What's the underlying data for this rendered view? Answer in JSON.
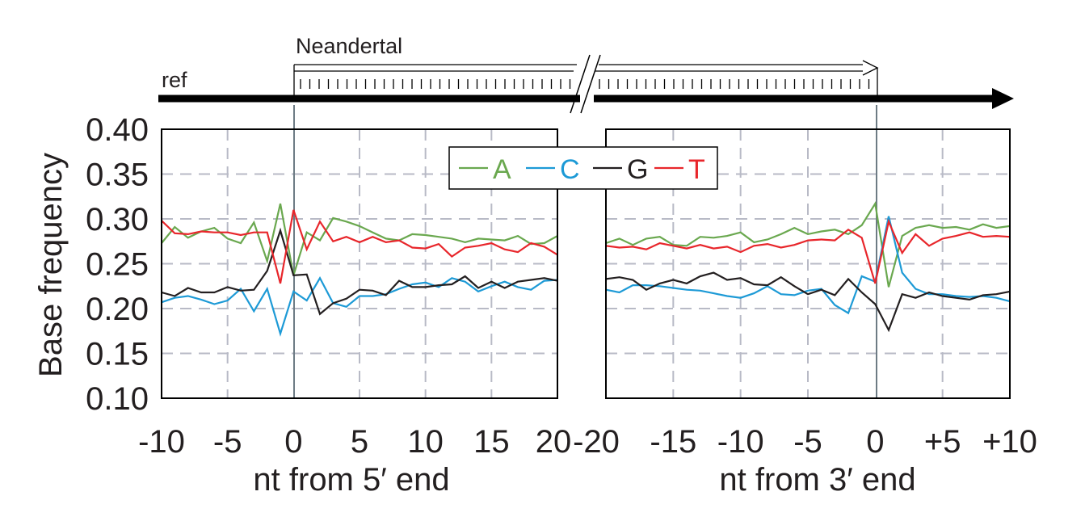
{
  "chart_data": [
    {
      "type": "line",
      "panel": "5prime",
      "xlabel": "nt from 5′ end",
      "ylabel": "Base frequency",
      "xlim": [
        -10,
        20
      ],
      "ylim": [
        0.1,
        0.4
      ],
      "xticks": [
        -10,
        -5,
        0,
        5,
        10,
        15,
        20
      ],
      "xtick_labels": [
        "-10",
        "-5",
        "0",
        "5",
        "10",
        "15",
        "20"
      ],
      "yticks": [
        0.1,
        0.15,
        0.2,
        0.25,
        0.3,
        0.35,
        0.4
      ],
      "ytick_labels": [
        "0.10",
        "0.15",
        "0.20",
        "0.25",
        "0.30",
        "0.35",
        "0.40"
      ],
      "grid": true,
      "x": [
        -10,
        -9,
        -8,
        -7,
        -6,
        -5,
        -4,
        -3,
        -2,
        -1,
        0,
        1,
        2,
        3,
        4,
        5,
        6,
        7,
        8,
        9,
        10,
        11,
        12,
        13,
        14,
        15,
        16,
        17,
        18,
        19,
        20
      ],
      "series": [
        {
          "name": "A",
          "color": "#6aa84f",
          "values": [
            0.273,
            0.291,
            0.279,
            0.286,
            0.29,
            0.278,
            0.273,
            0.296,
            0.253,
            0.317,
            0.237,
            0.285,
            0.276,
            0.301,
            0.297,
            0.292,
            0.285,
            0.278,
            0.276,
            0.283,
            0.282,
            0.28,
            0.278,
            0.274,
            0.278,
            0.277,
            0.276,
            0.281,
            0.272,
            0.273,
            0.281
          ]
        },
        {
          "name": "C",
          "color": "#1d9ad6",
          "values": [
            0.207,
            0.212,
            0.214,
            0.21,
            0.205,
            0.209,
            0.222,
            0.197,
            0.222,
            0.172,
            0.219,
            0.209,
            0.234,
            0.206,
            0.202,
            0.214,
            0.214,
            0.216,
            0.222,
            0.227,
            0.229,
            0.224,
            0.234,
            0.23,
            0.219,
            0.225,
            0.23,
            0.224,
            0.221,
            0.231,
            0.232
          ]
        },
        {
          "name": "G",
          "color": "#231f20",
          "values": [
            0.218,
            0.214,
            0.223,
            0.218,
            0.218,
            0.224,
            0.22,
            0.221,
            0.242,
            0.287,
            0.237,
            0.238,
            0.194,
            0.206,
            0.211,
            0.221,
            0.22,
            0.215,
            0.231,
            0.224,
            0.224,
            0.226,
            0.227,
            0.236,
            0.223,
            0.23,
            0.223,
            0.23,
            0.232,
            0.234,
            0.231
          ]
        },
        {
          "name": "T",
          "color": "#e8262b",
          "values": [
            0.298,
            0.284,
            0.283,
            0.286,
            0.285,
            0.285,
            0.282,
            0.285,
            0.285,
            0.228,
            0.31,
            0.266,
            0.297,
            0.275,
            0.28,
            0.274,
            0.28,
            0.274,
            0.276,
            0.268,
            0.267,
            0.272,
            0.258,
            0.268,
            0.27,
            0.273,
            0.266,
            0.263,
            0.273,
            0.269,
            0.26
          ]
        }
      ]
    },
    {
      "type": "line",
      "panel": "3prime",
      "xlabel": "nt from 3′ end",
      "xlim": [
        -20,
        10
      ],
      "ylim": [
        0.1,
        0.4
      ],
      "xticks": [
        -20,
        -15,
        -10,
        -5,
        0,
        5,
        10
      ],
      "xtick_labels": [
        "-20",
        "-15",
        "-10",
        "-5",
        "0",
        "+5",
        "+10"
      ],
      "grid": true,
      "x": [
        -20,
        -19,
        -18,
        -17,
        -16,
        -15,
        -14,
        -13,
        -12,
        -11,
        -10,
        -9,
        -8,
        -7,
        -6,
        -5,
        -4,
        -3,
        -2,
        -1,
        0,
        1,
        2,
        3,
        4,
        5,
        6,
        7,
        8,
        9,
        10
      ],
      "series": [
        {
          "name": "A",
          "color": "#6aa84f",
          "values": [
            0.273,
            0.278,
            0.271,
            0.278,
            0.28,
            0.271,
            0.27,
            0.28,
            0.279,
            0.281,
            0.285,
            0.274,
            0.277,
            0.283,
            0.29,
            0.283,
            0.286,
            0.288,
            0.283,
            0.293,
            0.317,
            0.224,
            0.281,
            0.29,
            0.293,
            0.29,
            0.291,
            0.288,
            0.294,
            0.29,
            0.292
          ]
        },
        {
          "name": "C",
          "color": "#1d9ad6",
          "values": [
            0.221,
            0.218,
            0.226,
            0.226,
            0.225,
            0.223,
            0.221,
            0.22,
            0.217,
            0.214,
            0.212,
            0.217,
            0.225,
            0.216,
            0.215,
            0.22,
            0.222,
            0.204,
            0.195,
            0.236,
            0.23,
            0.303,
            0.24,
            0.222,
            0.216,
            0.216,
            0.214,
            0.213,
            0.214,
            0.212,
            0.208
          ]
        },
        {
          "name": "G",
          "color": "#231f20",
          "values": [
            0.233,
            0.235,
            0.232,
            0.221,
            0.228,
            0.232,
            0.228,
            0.236,
            0.24,
            0.232,
            0.234,
            0.227,
            0.226,
            0.235,
            0.225,
            0.216,
            0.221,
            0.215,
            0.233,
            0.218,
            0.205,
            0.176,
            0.216,
            0.212,
            0.218,
            0.214,
            0.212,
            0.21,
            0.215,
            0.216,
            0.219
          ]
        },
        {
          "name": "T",
          "color": "#e8262b",
          "values": [
            0.27,
            0.268,
            0.269,
            0.266,
            0.273,
            0.27,
            0.267,
            0.271,
            0.267,
            0.269,
            0.263,
            0.27,
            0.272,
            0.268,
            0.271,
            0.276,
            0.277,
            0.276,
            0.288,
            0.279,
            0.228,
            0.297,
            0.262,
            0.283,
            0.27,
            0.278,
            0.281,
            0.285,
            0.28,
            0.281,
            0.28
          ]
        }
      ]
    }
  ],
  "legend": {
    "placement": "top-center",
    "items": [
      {
        "label": "A",
        "color": "#6aa84f"
      },
      {
        "label": "C",
        "color": "#1d9ad6"
      },
      {
        "label": "G",
        "color": "#231f20"
      },
      {
        "label": "T",
        "color": "#e8262b"
      }
    ]
  },
  "schematic": {
    "ref_label": "ref",
    "read_label": "Neandertal"
  }
}
